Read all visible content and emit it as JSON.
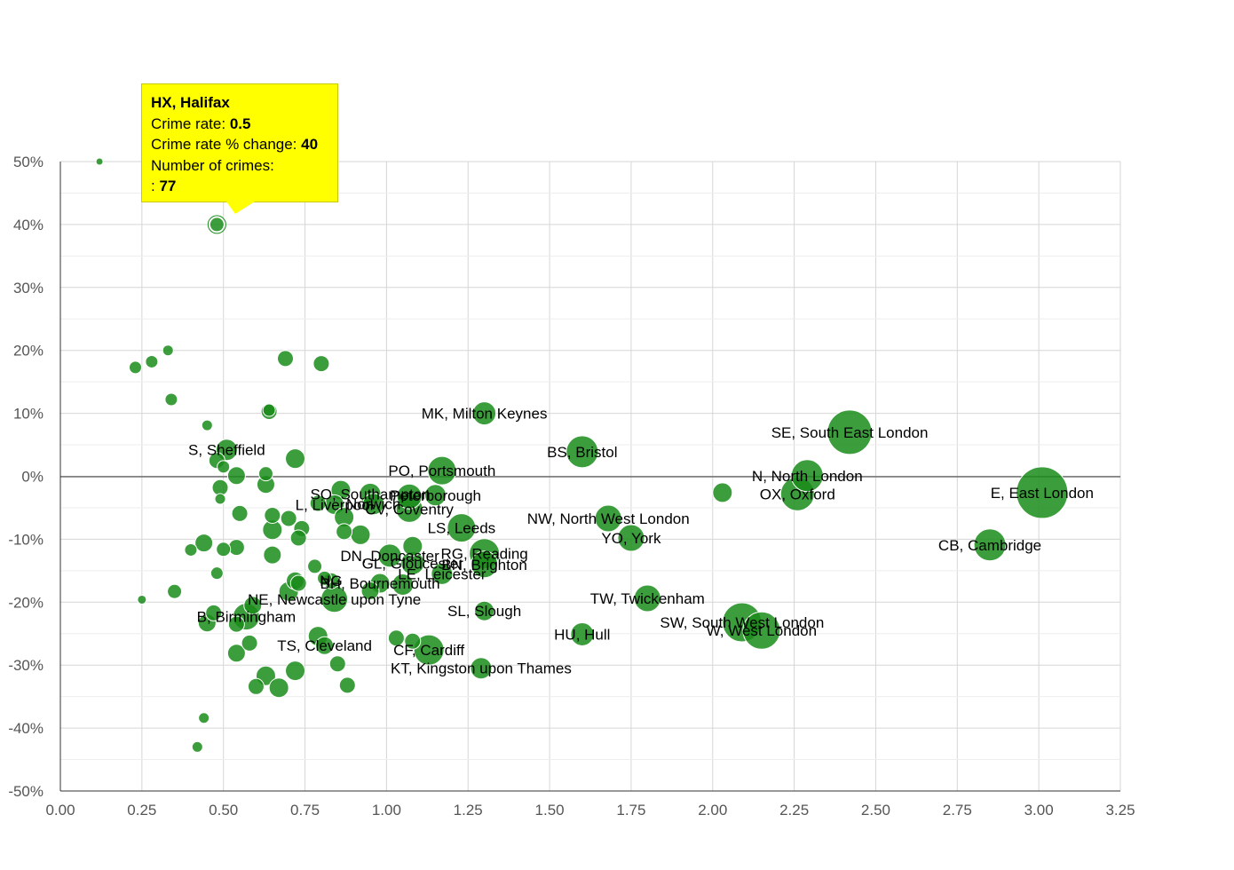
{
  "chart_data": {
    "type": "scatter",
    "title": "",
    "xlabel": "",
    "ylabel": "",
    "xlim": [
      0,
      3.25
    ],
    "ylim": [
      -50,
      50
    ],
    "x_ticks": [
      "0.00",
      "0.25",
      "0.50",
      "0.75",
      "1.00",
      "1.25",
      "1.50",
      "1.75",
      "2.00",
      "2.25",
      "2.50",
      "2.75",
      "3.00",
      "3.25"
    ],
    "y_ticks": [
      "50%",
      "40%",
      "30%",
      "20%",
      "10%",
      "0%",
      "-10%",
      "-20%",
      "-30%",
      "-40%",
      "-50%"
    ],
    "grid": true,
    "bubble_color": "#1a8c1a",
    "points": [
      {
        "x": 0.12,
        "y": 50,
        "s": 4,
        "label": ""
      },
      {
        "x": 0.48,
        "y": 40,
        "s": 8,
        "label": ""
      },
      {
        "x": 0.53,
        "y": 44,
        "s": 5,
        "label": ""
      },
      {
        "x": 0.23,
        "y": 17.3,
        "s": 7,
        "label": ""
      },
      {
        "x": 0.28,
        "y": 18.2,
        "s": 7,
        "label": ""
      },
      {
        "x": 0.33,
        "y": 20,
        "s": 6,
        "label": ""
      },
      {
        "x": 0.69,
        "y": 18.7,
        "s": 9,
        "label": ""
      },
      {
        "x": 0.8,
        "y": 17.9,
        "s": 9,
        "label": ""
      },
      {
        "x": 0.34,
        "y": 12.2,
        "s": 7,
        "label": ""
      },
      {
        "x": 0.64,
        "y": 10.5,
        "s": 7,
        "label": ""
      },
      {
        "x": 0.64,
        "y": 10.3,
        "s": 9,
        "label": ""
      },
      {
        "x": 0.45,
        "y": 8.1,
        "s": 6,
        "label": ""
      },
      {
        "x": 0.51,
        "y": 4.2,
        "s": 12,
        "label": "S, Sheffield"
      },
      {
        "x": 0.48,
        "y": 2.5,
        "s": 9,
        "label": ""
      },
      {
        "x": 0.5,
        "y": 1.5,
        "s": 7,
        "label": ""
      },
      {
        "x": 0.72,
        "y": 2.8,
        "s": 11,
        "label": ""
      },
      {
        "x": 0.54,
        "y": 0.1,
        "s": 10,
        "label": ""
      },
      {
        "x": 0.63,
        "y": 0.4,
        "s": 8,
        "label": ""
      },
      {
        "x": 0.63,
        "y": -1.3,
        "s": 10,
        "label": ""
      },
      {
        "x": 0.49,
        "y": -1.8,
        "s": 9,
        "label": ""
      },
      {
        "x": 0.49,
        "y": -3.6,
        "s": 6,
        "label": ""
      },
      {
        "x": 0.86,
        "y": -2.2,
        "s": 11,
        "label": ""
      },
      {
        "x": 1.3,
        "y": 10,
        "s": 13,
        "label": "MK, Milton Keynes"
      },
      {
        "x": 1.6,
        "y": 3.9,
        "s": 18,
        "label": "BS, Bristol"
      },
      {
        "x": 1.17,
        "y": 0.9,
        "s": 16,
        "label": "PO, Portsmouth"
      },
      {
        "x": 0.95,
        "y": -2.8,
        "s": 12,
        "label": "SO, Southampton"
      },
      {
        "x": 1.07,
        "y": -3.2,
        "s": 14,
        "label": ""
      },
      {
        "x": 1.15,
        "y": -3.0,
        "s": 12,
        "label": "Peterborough"
      },
      {
        "x": 0.84,
        "y": -4.5,
        "s": 11,
        "label": "L, Liverpool"
      },
      {
        "x": 0.96,
        "y": -4.4,
        "s": 12,
        "label": "Norwich"
      },
      {
        "x": 1.07,
        "y": -5.2,
        "s": 15,
        "label": "CV, Coventry"
      },
      {
        "x": 0.79,
        "y": -4.3,
        "s": 9,
        "label": ""
      },
      {
        "x": 0.55,
        "y": -5.9,
        "s": 9,
        "label": ""
      },
      {
        "x": 0.65,
        "y": -6.2,
        "s": 9,
        "label": ""
      },
      {
        "x": 0.7,
        "y": -6.7,
        "s": 9,
        "label": ""
      },
      {
        "x": 0.87,
        "y": -6.5,
        "s": 11,
        "label": ""
      },
      {
        "x": 0.65,
        "y": -8.5,
        "s": 11,
        "label": ""
      },
      {
        "x": 0.74,
        "y": -8.3,
        "s": 9,
        "label": ""
      },
      {
        "x": 0.87,
        "y": -8.8,
        "s": 9,
        "label": ""
      },
      {
        "x": 0.92,
        "y": -9.3,
        "s": 11,
        "label": ""
      },
      {
        "x": 0.73,
        "y": -9.8,
        "s": 9,
        "label": ""
      },
      {
        "x": 1.23,
        "y": -8.2,
        "s": 16,
        "label": "LS, Leeds"
      },
      {
        "x": 1.68,
        "y": -6.7,
        "s": 15,
        "label": "NW, North West London"
      },
      {
        "x": 1.75,
        "y": -9.8,
        "s": 15,
        "label": "YO, York"
      },
      {
        "x": 1.08,
        "y": -11.1,
        "s": 11,
        "label": ""
      },
      {
        "x": 0.44,
        "y": -10.6,
        "s": 10,
        "label": ""
      },
      {
        "x": 0.4,
        "y": -11.7,
        "s": 7,
        "label": ""
      },
      {
        "x": 0.54,
        "y": -11.3,
        "s": 9,
        "label": ""
      },
      {
        "x": 0.5,
        "y": -11.6,
        "s": 8,
        "label": ""
      },
      {
        "x": 0.65,
        "y": -12.5,
        "s": 10,
        "label": ""
      },
      {
        "x": 1.01,
        "y": -12.6,
        "s": 13,
        "label": "DN, Doncaster"
      },
      {
        "x": 1.3,
        "y": -12.3,
        "s": 17,
        "label": "RG, Reading"
      },
      {
        "x": 1.08,
        "y": -13.8,
        "s": 13,
        "label": "GL, Gloucester"
      },
      {
        "x": 1.3,
        "y": -14.0,
        "s": 15,
        "label": "BN, Brighton"
      },
      {
        "x": 1.17,
        "y": -15.5,
        "s": 12,
        "label": "LE, Leicester"
      },
      {
        "x": 0.78,
        "y": -14.3,
        "s": 8,
        "label": ""
      },
      {
        "x": 0.48,
        "y": -15.4,
        "s": 7,
        "label": ""
      },
      {
        "x": 0.81,
        "y": -16.2,
        "s": 8,
        "label": ""
      },
      {
        "x": 0.72,
        "y": -16.6,
        "s": 10,
        "label": ""
      },
      {
        "x": 0.73,
        "y": -17.0,
        "s": 9,
        "label": ""
      },
      {
        "x": 0.83,
        "y": -16.6,
        "s": 9,
        "label": "NG"
      },
      {
        "x": 0.98,
        "y": -17.0,
        "s": 11,
        "label": "BH, Bournemouth"
      },
      {
        "x": 1.05,
        "y": -17.2,
        "s": 12,
        "label": ""
      },
      {
        "x": 0.95,
        "y": -18.2,
        "s": 10,
        "label": ""
      },
      {
        "x": 0.35,
        "y": -18.3,
        "s": 8,
        "label": ""
      },
      {
        "x": 0.7,
        "y": -18.3,
        "s": 11,
        "label": ""
      },
      {
        "x": 0.84,
        "y": -19.5,
        "s": 15,
        "label": "NE, Newcastle upon Tyne"
      },
      {
        "x": 0.25,
        "y": -19.6,
        "s": 5,
        "label": ""
      },
      {
        "x": 0.59,
        "y": -20.5,
        "s": 10,
        "label": ""
      },
      {
        "x": 0.47,
        "y": -21.7,
        "s": 9,
        "label": ""
      },
      {
        "x": 0.57,
        "y": -22.3,
        "s": 15,
        "label": "B, Birmingham"
      },
      {
        "x": 0.45,
        "y": -23.3,
        "s": 10,
        "label": ""
      },
      {
        "x": 0.54,
        "y": -23.5,
        "s": 9,
        "label": ""
      },
      {
        "x": 1.3,
        "y": -21.4,
        "s": 11,
        "label": "SL, Slough"
      },
      {
        "x": 1.8,
        "y": -19.4,
        "s": 15,
        "label": "TW, Twickenham"
      },
      {
        "x": 1.6,
        "y": -25.1,
        "s": 13,
        "label": "HU, Hull"
      },
      {
        "x": 2.09,
        "y": -23.2,
        "s": 22,
        "label": "SW, South West London"
      },
      {
        "x": 2.15,
        "y": -24.5,
        "s": 21,
        "label": "W, West London"
      },
      {
        "x": 0.79,
        "y": -25.4,
        "s": 11,
        "label": ""
      },
      {
        "x": 0.81,
        "y": -26.9,
        "s": 10,
        "label": "TS, Cleveland"
      },
      {
        "x": 0.58,
        "y": -26.5,
        "s": 9,
        "label": ""
      },
      {
        "x": 1.03,
        "y": -25.7,
        "s": 9,
        "label": ""
      },
      {
        "x": 1.08,
        "y": -26.2,
        "s": 9,
        "label": ""
      },
      {
        "x": 1.13,
        "y": -27.6,
        "s": 17,
        "label": "CF, Cardiff"
      },
      {
        "x": 0.54,
        "y": -28.1,
        "s": 10,
        "label": ""
      },
      {
        "x": 0.85,
        "y": -29.8,
        "s": 9,
        "label": ""
      },
      {
        "x": 0.72,
        "y": -30.9,
        "s": 11,
        "label": ""
      },
      {
        "x": 0.63,
        "y": -31.7,
        "s": 11,
        "label": ""
      },
      {
        "x": 1.29,
        "y": -30.5,
        "s": 12,
        "label": "KT, Kingston upon Thames"
      },
      {
        "x": 0.6,
        "y": -33.4,
        "s": 9,
        "label": ""
      },
      {
        "x": 0.67,
        "y": -33.6,
        "s": 11,
        "label": ""
      },
      {
        "x": 0.88,
        "y": -33.2,
        "s": 9,
        "label": ""
      },
      {
        "x": 0.44,
        "y": -38.4,
        "s": 6,
        "label": ""
      },
      {
        "x": 0.42,
        "y": -43.0,
        "s": 6,
        "label": ""
      },
      {
        "x": 2.03,
        "y": -2.6,
        "s": 11,
        "label": ""
      },
      {
        "x": 2.29,
        "y": 0.1,
        "s": 18,
        "label": "N, North London"
      },
      {
        "x": 2.26,
        "y": -2.8,
        "s": 19,
        "label": "OX, Oxford"
      },
      {
        "x": 2.42,
        "y": 7.0,
        "s": 25,
        "label": "SE, South East London"
      },
      {
        "x": 3.01,
        "y": -2.6,
        "s": 29,
        "label": "E, East London"
      },
      {
        "x": 2.85,
        "y": -10.9,
        "s": 18,
        "label": "CB, Cambridge"
      }
    ]
  },
  "tooltip": {
    "title": "HX, Halifax",
    "crime_rate_label": "Crime rate:",
    "crime_rate_value": "0.5",
    "change_label": "Crime rate % change:",
    "change_value": "40",
    "crimes_label": "Number of crimes:",
    "crimes_prefix": ":",
    "crimes_value": "77"
  }
}
